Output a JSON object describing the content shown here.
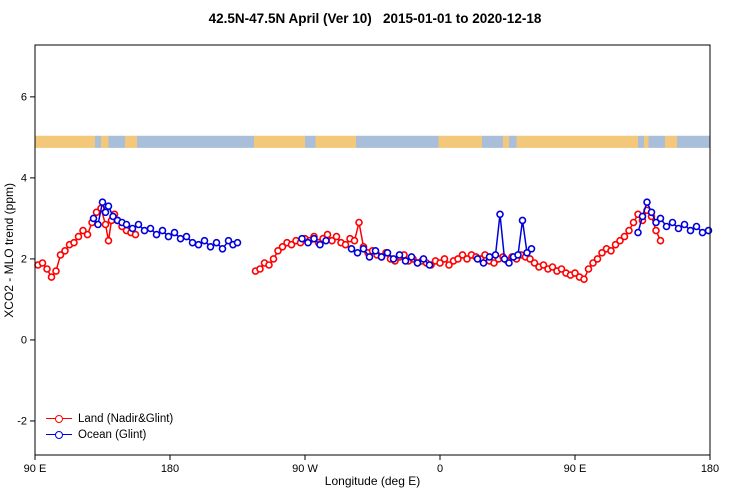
{
  "chart_data": {
    "type": "line",
    "title": "42.5N-47.5N April (Ver 10)   2015-01-01 to 2020-12-18",
    "xlabel": "Longitude (deg E)",
    "ylabel": "XCO2 - MLO trend (ppm)",
    "xlim": [
      90,
      540
    ],
    "ylim": [
      -2.84,
      7.28
    ],
    "grid": false,
    "xticks": [
      {
        "value": 90,
        "label": "90 E"
      },
      {
        "value": 180,
        "label": "180"
      },
      {
        "value": 270,
        "label": "90 W"
      },
      {
        "value": 360,
        "label": "0"
      },
      {
        "value": 450,
        "label": "90 E"
      },
      {
        "value": 540,
        "label": "180"
      }
    ],
    "yticks": [
      {
        "value": -2,
        "label": "-2"
      },
      {
        "value": 0,
        "label": "0"
      },
      {
        "value": 2,
        "label": "2"
      },
      {
        "value": 4,
        "label": "4"
      },
      {
        "value": 6,
        "label": "6"
      }
    ],
    "map_band": {
      "value_range": [
        4.74,
        5.04
      ],
      "land_color": "#f4c87a",
      "ocean_color": "#a9bed9",
      "segments": [
        {
          "from": 90,
          "to": 130,
          "type": "land"
        },
        {
          "from": 130,
          "to": 134,
          "type": "ocean"
        },
        {
          "from": 134,
          "to": 139,
          "type": "land"
        },
        {
          "from": 139,
          "to": 150,
          "type": "ocean"
        },
        {
          "from": 150,
          "to": 158,
          "type": "land"
        },
        {
          "from": 158,
          "to": 236,
          "type": "ocean"
        },
        {
          "from": 236,
          "to": 270,
          "type": "land"
        },
        {
          "from": 270,
          "to": 277,
          "type": "ocean"
        },
        {
          "from": 277,
          "to": 304,
          "type": "land"
        },
        {
          "from": 304,
          "to": 359,
          "type": "ocean"
        },
        {
          "from": 359,
          "to": 388,
          "type": "land"
        },
        {
          "from": 388,
          "to": 402,
          "type": "ocean"
        },
        {
          "from": 402,
          "to": 406,
          "type": "land"
        },
        {
          "from": 406,
          "to": 411,
          "type": "ocean"
        },
        {
          "from": 411,
          "to": 492,
          "type": "land"
        },
        {
          "from": 492,
          "to": 496,
          "type": "ocean"
        },
        {
          "from": 496,
          "to": 499,
          "type": "land"
        },
        {
          "from": 499,
          "to": 510,
          "type": "ocean"
        },
        {
          "from": 510,
          "to": 518,
          "type": "land"
        },
        {
          "from": 518,
          "to": 540,
          "type": "ocean"
        }
      ]
    },
    "legend": {
      "position": "bottom-left"
    },
    "series": [
      {
        "name": "Land (Nadir&Glint)",
        "color": "#ff0000",
        "segments": [
          [
            [
              92,
              1.85
            ],
            [
              95,
              1.9
            ],
            [
              98,
              1.75
            ],
            [
              101,
              1.55
            ],
            [
              104,
              1.7
            ],
            [
              107,
              2.1
            ],
            [
              110,
              2.2
            ],
            [
              113,
              2.35
            ],
            [
              116,
              2.4
            ],
            [
              119,
              2.55
            ],
            [
              122,
              2.7
            ],
            [
              125,
              2.6
            ],
            [
              128,
              2.9
            ],
            [
              131,
              3.15
            ],
            [
              134,
              3.25
            ],
            [
              137,
              2.85
            ],
            [
              139,
              2.45
            ],
            [
              141,
              2.95
            ],
            [
              143,
              3.1
            ],
            [
              145,
              2.95
            ],
            [
              148,
              2.8
            ],
            [
              151,
              2.7
            ],
            [
              154,
              2.65
            ],
            [
              157,
              2.6
            ]
          ],
          [
            [
              237,
              1.7
            ],
            [
              240,
              1.75
            ],
            [
              243,
              1.9
            ],
            [
              246,
              1.85
            ],
            [
              249,
              2.0
            ],
            [
              252,
              2.2
            ],
            [
              255,
              2.3
            ],
            [
              258,
              2.4
            ],
            [
              261,
              2.35
            ],
            [
              264,
              2.45
            ],
            [
              267,
              2.4
            ],
            [
              270,
              2.5
            ],
            [
              273,
              2.45
            ],
            [
              276,
              2.55
            ],
            [
              279,
              2.4
            ],
            [
              282,
              2.5
            ],
            [
              285,
              2.6
            ],
            [
              288,
              2.45
            ],
            [
              291,
              2.55
            ],
            [
              294,
              2.4
            ],
            [
              297,
              2.35
            ],
            [
              300,
              2.5
            ],
            [
              303,
              2.45
            ],
            [
              306,
              2.9
            ],
            [
              309,
              2.3
            ],
            [
              312,
              2.15
            ],
            [
              315,
              2.2
            ],
            [
              318,
              2.1
            ],
            [
              321,
              2.05
            ],
            [
              324,
              2.15
            ],
            [
              327,
              2.0
            ],
            [
              330,
              1.95
            ],
            [
              333,
              2.05
            ],
            [
              336,
              2.1
            ],
            [
              339,
              1.95
            ],
            [
              342,
              2.0
            ],
            [
              345,
              1.9
            ],
            [
              348,
              1.95
            ],
            [
              351,
              1.9
            ],
            [
              354,
              1.85
            ],
            [
              357,
              1.95
            ],
            [
              360,
              1.9
            ],
            [
              363,
              2.0
            ],
            [
              366,
              1.85
            ],
            [
              369,
              1.95
            ],
            [
              372,
              2.0
            ],
            [
              375,
              2.1
            ],
            [
              378,
              2.0
            ],
            [
              381,
              2.1
            ],
            [
              384,
              2.05
            ],
            [
              387,
              2.0
            ],
            [
              390,
              2.1
            ],
            [
              393,
              1.95
            ],
            [
              396,
              1.9
            ],
            [
              399,
              2.0
            ],
            [
              402,
              2.05
            ],
            [
              405,
              1.95
            ],
            [
              408,
              2.05
            ],
            [
              411,
              2.0
            ],
            [
              414,
              2.1
            ],
            [
              417,
              2.05
            ],
            [
              420,
              2.0
            ],
            [
              423,
              1.9
            ],
            [
              426,
              1.8
            ],
            [
              429,
              1.85
            ],
            [
              432,
              1.75
            ],
            [
              435,
              1.8
            ],
            [
              438,
              1.7
            ],
            [
              441,
              1.75
            ],
            [
              444,
              1.65
            ],
            [
              447,
              1.6
            ],
            [
              450,
              1.65
            ],
            [
              453,
              1.55
            ],
            [
              456,
              1.5
            ],
            [
              459,
              1.75
            ],
            [
              462,
              1.9
            ],
            [
              465,
              2.0
            ],
            [
              468,
              2.15
            ],
            [
              471,
              2.25
            ],
            [
              474,
              2.2
            ],
            [
              477,
              2.35
            ],
            [
              480,
              2.45
            ],
            [
              483,
              2.55
            ],
            [
              486,
              2.7
            ],
            [
              489,
              2.9
            ],
            [
              492,
              3.1
            ],
            [
              495,
              2.95
            ],
            [
              498,
              3.2
            ],
            [
              501,
              3.05
            ],
            [
              504,
              2.7
            ],
            [
              507,
              2.45
            ]
          ]
        ]
      },
      {
        "name": "Ocean (Glint)",
        "color": "#0000dd",
        "segments": [
          [
            [
              129,
              3.0
            ],
            [
              132,
              2.85
            ],
            [
              135,
              3.4
            ],
            [
              137,
              3.15
            ],
            [
              139,
              3.3
            ],
            [
              142,
              3.05
            ],
            [
              145,
              2.95
            ],
            [
              148,
              2.9
            ],
            [
              151,
              2.85
            ],
            [
              155,
              2.75
            ],
            [
              159,
              2.85
            ],
            [
              163,
              2.7
            ],
            [
              167,
              2.75
            ],
            [
              171,
              2.6
            ],
            [
              175,
              2.7
            ],
            [
              179,
              2.55
            ],
            [
              183,
              2.65
            ],
            [
              187,
              2.5
            ],
            [
              191,
              2.55
            ],
            [
              195,
              2.4
            ],
            [
              199,
              2.35
            ],
            [
              203,
              2.45
            ],
            [
              207,
              2.3
            ],
            [
              211,
              2.4
            ],
            [
              215,
              2.25
            ],
            [
              219,
              2.45
            ],
            [
              222,
              2.35
            ],
            [
              225,
              2.4
            ]
          ],
          [
            [
              268,
              2.5
            ],
            [
              272,
              2.4
            ],
            [
              276,
              2.5
            ],
            [
              280,
              2.35
            ],
            [
              284,
              2.45
            ]
          ],
          [
            [
              301,
              2.25
            ],
            [
              305,
              2.15
            ],
            [
              309,
              2.25
            ],
            [
              313,
              2.05
            ],
            [
              317,
              2.2
            ],
            [
              321,
              2.05
            ],
            [
              325,
              2.15
            ],
            [
              329,
              2.0
            ],
            [
              333,
              2.1
            ],
            [
              337,
              1.95
            ],
            [
              341,
              2.05
            ],
            [
              345,
              1.9
            ],
            [
              349,
              2.0
            ],
            [
              353,
              1.85
            ]
          ],
          [
            [
              385,
              2.0
            ],
            [
              389,
              1.9
            ],
            [
              393,
              2.05
            ],
            [
              397,
              2.1
            ],
            [
              400,
              3.1
            ],
            [
              403,
              2.0
            ],
            [
              406,
              1.9
            ],
            [
              409,
              2.05
            ],
            [
              412,
              2.1
            ],
            [
              415,
              2.95
            ],
            [
              418,
              2.15
            ],
            [
              421,
              2.25
            ]
          ],
          [
            [
              492,
              2.65
            ],
            [
              495,
              3.05
            ],
            [
              498,
              3.4
            ],
            [
              501,
              3.15
            ],
            [
              504,
              2.9
            ],
            [
              507,
              3.0
            ],
            [
              511,
              2.8
            ],
            [
              515,
              2.9
            ],
            [
              519,
              2.75
            ],
            [
              523,
              2.85
            ],
            [
              527,
              2.7
            ],
            [
              531,
              2.8
            ],
            [
              535,
              2.65
            ],
            [
              539,
              2.7
            ]
          ]
        ]
      }
    ]
  }
}
